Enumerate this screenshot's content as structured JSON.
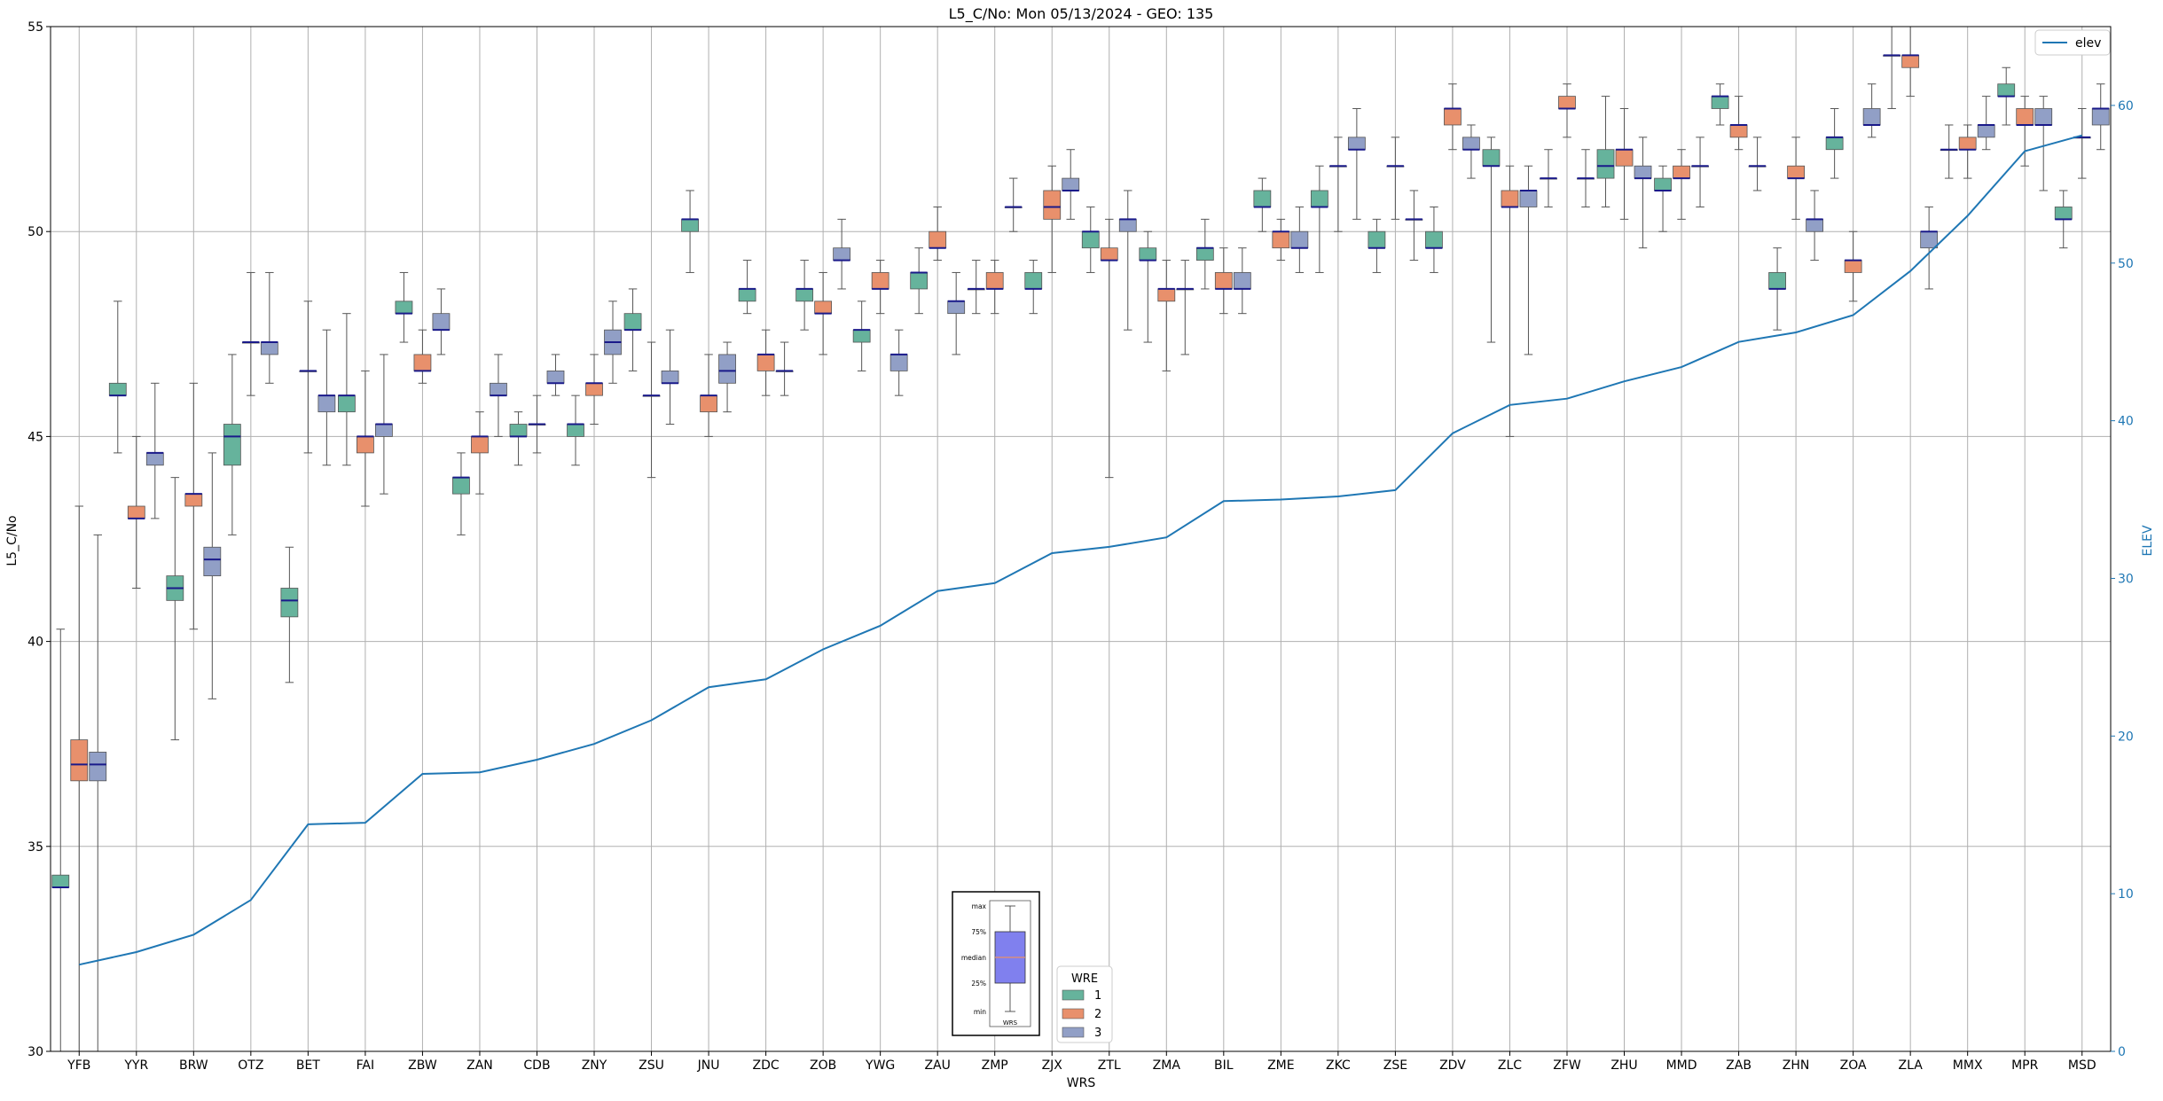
{
  "chart_data": {
    "type": "box",
    "title": "L5_C/No: Mon 05/13/2024 - GEO: 135",
    "xlabel": "WRS",
    "ylabel": "L5_C/No",
    "y2label": "ELEV",
    "ylim": [
      30,
      55
    ],
    "y2lim": [
      0,
      65
    ],
    "yticks": [
      30,
      35,
      40,
      45,
      50,
      55
    ],
    "y2ticks": [
      0,
      10,
      20,
      30,
      40,
      50,
      60
    ],
    "grid": true,
    "categories": [
      "YFB",
      "YYR",
      "BRW",
      "OTZ",
      "BET",
      "FAI",
      "ZBW",
      "ZAN",
      "CDB",
      "ZNY",
      "ZSU",
      "JNU",
      "ZDC",
      "ZOB",
      "YWG",
      "ZAU",
      "ZMP",
      "ZJX",
      "ZTL",
      "ZMA",
      "BIL",
      "ZME",
      "ZKC",
      "ZSE",
      "ZDV",
      "ZLC",
      "ZFW",
      "ZHU",
      "MMD",
      "ZAB",
      "ZHN",
      "ZOA",
      "ZLA",
      "MMX",
      "MPR",
      "MSD"
    ],
    "wre_colors": {
      "1": "#66b39c",
      "2": "#e8906c",
      "3": "#919fc6"
    },
    "median_color": "#1a1a8a",
    "boxes": [
      {
        "wrs": "YFB",
        "wre": 1,
        "min": 30,
        "q1": 34.0,
        "median": 34.0,
        "q3": 34.3,
        "max": 40.3
      },
      {
        "wrs": "YFB",
        "wre": 2,
        "min": 30,
        "q1": 36.6,
        "median": 37.0,
        "q3": 37.6,
        "max": 43.3
      },
      {
        "wrs": "YFB",
        "wre": 3,
        "min": 30,
        "q1": 36.6,
        "median": 37.0,
        "q3": 37.3,
        "max": 42.6
      },
      {
        "wrs": "YYR",
        "wre": 1,
        "min": 44.6,
        "q1": 46.0,
        "median": 46.0,
        "q3": 46.3,
        "max": 48.3
      },
      {
        "wrs": "YYR",
        "wre": 2,
        "min": 41.3,
        "q1": 43.0,
        "median": 43.0,
        "q3": 43.3,
        "max": 45.0
      },
      {
        "wrs": "YYR",
        "wre": 3,
        "min": 43.0,
        "q1": 44.3,
        "median": 44.6,
        "q3": 44.6,
        "max": 46.3
      },
      {
        "wrs": "BRW",
        "wre": 1,
        "min": 37.6,
        "q1": 41.0,
        "median": 41.3,
        "q3": 41.6,
        "max": 44.0
      },
      {
        "wrs": "BRW",
        "wre": 2,
        "min": 40.3,
        "q1": 43.3,
        "median": 43.6,
        "q3": 43.6,
        "max": 46.3
      },
      {
        "wrs": "BRW",
        "wre": 3,
        "min": 38.6,
        "q1": 41.6,
        "median": 42.0,
        "q3": 42.3,
        "max": 44.6
      },
      {
        "wrs": "OTZ",
        "wre": 1,
        "min": 42.6,
        "q1": 44.3,
        "median": 45.0,
        "q3": 45.3,
        "max": 47.0
      },
      {
        "wrs": "OTZ",
        "wre": 2,
        "min": 46.0,
        "q1": 47.3,
        "median": 47.3,
        "q3": 47.3,
        "max": 49.0
      },
      {
        "wrs": "OTZ",
        "wre": 3,
        "min": 46.3,
        "q1": 47.0,
        "median": 47.3,
        "q3": 47.3,
        "max": 49.0
      },
      {
        "wrs": "BET",
        "wre": 1,
        "min": 39.0,
        "q1": 40.6,
        "median": 41.0,
        "q3": 41.3,
        "max": 42.3
      },
      {
        "wrs": "BET",
        "wre": 2,
        "min": 44.6,
        "q1": 46.6,
        "median": 46.6,
        "q3": 46.6,
        "max": 48.3
      },
      {
        "wrs": "BET",
        "wre": 3,
        "min": 44.3,
        "q1": 45.6,
        "median": 46.0,
        "q3": 46.0,
        "max": 47.6
      },
      {
        "wrs": "FAI",
        "wre": 1,
        "min": 44.3,
        "q1": 45.6,
        "median": 46.0,
        "q3": 46.0,
        "max": 48.0
      },
      {
        "wrs": "FAI",
        "wre": 2,
        "min": 43.3,
        "q1": 44.6,
        "median": 45.0,
        "q3": 45.0,
        "max": 46.6
      },
      {
        "wrs": "FAI",
        "wre": 3,
        "min": 43.6,
        "q1": 45.0,
        "median": 45.3,
        "q3": 45.3,
        "max": 47.0
      },
      {
        "wrs": "ZBW",
        "wre": 1,
        "min": 47.3,
        "q1": 48.0,
        "median": 48.0,
        "q3": 48.3,
        "max": 49.0
      },
      {
        "wrs": "ZBW",
        "wre": 2,
        "min": 46.3,
        "q1": 46.6,
        "median": 46.6,
        "q3": 47.0,
        "max": 47.6
      },
      {
        "wrs": "ZBW",
        "wre": 3,
        "min": 47.0,
        "q1": 47.6,
        "median": 47.6,
        "q3": 48.0,
        "max": 48.6
      },
      {
        "wrs": "ZAN",
        "wre": 1,
        "min": 42.6,
        "q1": 43.6,
        "median": 44.0,
        "q3": 44.0,
        "max": 44.6
      },
      {
        "wrs": "ZAN",
        "wre": 2,
        "min": 43.6,
        "q1": 44.6,
        "median": 45.0,
        "q3": 45.0,
        "max": 45.6
      },
      {
        "wrs": "ZAN",
        "wre": 3,
        "min": 45.0,
        "q1": 46.0,
        "median": 46.0,
        "q3": 46.3,
        "max": 47.0
      },
      {
        "wrs": "CDB",
        "wre": 1,
        "min": 44.3,
        "q1": 45.0,
        "median": 45.0,
        "q3": 45.3,
        "max": 45.6
      },
      {
        "wrs": "CDB",
        "wre": 2,
        "min": 44.6,
        "q1": 45.3,
        "median": 45.3,
        "q3": 45.3,
        "max": 46.0
      },
      {
        "wrs": "CDB",
        "wre": 3,
        "min": 46.0,
        "q1": 46.3,
        "median": 46.3,
        "q3": 46.6,
        "max": 47.0
      },
      {
        "wrs": "ZNY",
        "wre": 1,
        "min": 44.3,
        "q1": 45.0,
        "median": 45.3,
        "q3": 45.3,
        "max": 46.0
      },
      {
        "wrs": "ZNY",
        "wre": 2,
        "min": 45.3,
        "q1": 46.0,
        "median": 46.3,
        "q3": 46.3,
        "max": 47.0
      },
      {
        "wrs": "ZNY",
        "wre": 3,
        "min": 46.3,
        "q1": 47.0,
        "median": 47.3,
        "q3": 47.6,
        "max": 48.3
      },
      {
        "wrs": "ZSU",
        "wre": 1,
        "min": 46.6,
        "q1": 47.6,
        "median": 47.6,
        "q3": 48.0,
        "max": 48.6
      },
      {
        "wrs": "ZSU",
        "wre": 2,
        "min": 44.0,
        "q1": 46.0,
        "median": 46.0,
        "q3": 46.0,
        "max": 47.3
      },
      {
        "wrs": "ZSU",
        "wre": 3,
        "min": 45.3,
        "q1": 46.3,
        "median": 46.3,
        "q3": 46.6,
        "max": 47.6
      },
      {
        "wrs": "JNU",
        "wre": 1,
        "min": 49.0,
        "q1": 50.0,
        "median": 50.3,
        "q3": 50.3,
        "max": 51.0
      },
      {
        "wrs": "JNU",
        "wre": 2,
        "min": 45.0,
        "q1": 45.6,
        "median": 46.0,
        "q3": 46.0,
        "max": 47.0
      },
      {
        "wrs": "JNU",
        "wre": 3,
        "min": 45.6,
        "q1": 46.3,
        "median": 46.6,
        "q3": 47.0,
        "max": 47.3
      },
      {
        "wrs": "ZDC",
        "wre": 1,
        "min": 48.0,
        "q1": 48.3,
        "median": 48.6,
        "q3": 48.6,
        "max": 49.3
      },
      {
        "wrs": "ZDC",
        "wre": 2,
        "min": 46.0,
        "q1": 46.6,
        "median": 47.0,
        "q3": 47.0,
        "max": 47.6
      },
      {
        "wrs": "ZDC",
        "wre": 3,
        "min": 46.0,
        "q1": 46.6,
        "median": 46.6,
        "q3": 46.6,
        "max": 47.3
      },
      {
        "wrs": "ZOB",
        "wre": 1,
        "min": 47.6,
        "q1": 48.3,
        "median": 48.6,
        "q3": 48.6,
        "max": 49.3
      },
      {
        "wrs": "ZOB",
        "wre": 2,
        "min": 47.0,
        "q1": 48.0,
        "median": 48.0,
        "q3": 48.3,
        "max": 49.0
      },
      {
        "wrs": "ZOB",
        "wre": 3,
        "min": 48.6,
        "q1": 49.3,
        "median": 49.3,
        "q3": 49.6,
        "max": 50.3
      },
      {
        "wrs": "YWG",
        "wre": 1,
        "min": 46.6,
        "q1": 47.3,
        "median": 47.6,
        "q3": 47.6,
        "max": 48.3
      },
      {
        "wrs": "YWG",
        "wre": 2,
        "min": 48.0,
        "q1": 48.6,
        "median": 48.6,
        "q3": 49.0,
        "max": 49.3
      },
      {
        "wrs": "YWG",
        "wre": 3,
        "min": 46.0,
        "q1": 46.6,
        "median": 47.0,
        "q3": 47.0,
        "max": 47.6
      },
      {
        "wrs": "ZAU",
        "wre": 1,
        "min": 48.0,
        "q1": 48.6,
        "median": 49.0,
        "q3": 49.0,
        "max": 49.6
      },
      {
        "wrs": "ZAU",
        "wre": 2,
        "min": 49.3,
        "q1": 49.6,
        "median": 49.6,
        "q3": 50.0,
        "max": 50.6
      },
      {
        "wrs": "ZAU",
        "wre": 3,
        "min": 47.0,
        "q1": 48.0,
        "median": 48.3,
        "q3": 48.3,
        "max": 49.0
      },
      {
        "wrs": "ZMP",
        "wre": 1,
        "min": 48.0,
        "q1": 48.6,
        "median": 48.6,
        "q3": 48.6,
        "max": 49.3
      },
      {
        "wrs": "ZMP",
        "wre": 2,
        "min": 48.0,
        "q1": 48.6,
        "median": 48.6,
        "q3": 49.0,
        "max": 49.3
      },
      {
        "wrs": "ZMP",
        "wre": 3,
        "min": 50.0,
        "q1": 50.6,
        "median": 50.6,
        "q3": 50.6,
        "max": 51.3
      },
      {
        "wrs": "ZJX",
        "wre": 1,
        "min": 48.0,
        "q1": 48.6,
        "median": 48.6,
        "q3": 49.0,
        "max": 49.3
      },
      {
        "wrs": "ZJX",
        "wre": 2,
        "min": 49.0,
        "q1": 50.3,
        "median": 50.6,
        "q3": 51.0,
        "max": 51.6
      },
      {
        "wrs": "ZJX",
        "wre": 3,
        "min": 50.3,
        "q1": 51.0,
        "median": 51.0,
        "q3": 51.3,
        "max": 52.0
      },
      {
        "wrs": "ZTL",
        "wre": 1,
        "min": 49.0,
        "q1": 49.6,
        "median": 50.0,
        "q3": 50.0,
        "max": 50.6
      },
      {
        "wrs": "ZTL",
        "wre": 2,
        "min": 44.0,
        "q1": 49.3,
        "median": 49.3,
        "q3": 49.6,
        "max": 50.3
      },
      {
        "wrs": "ZTL",
        "wre": 3,
        "min": 47.6,
        "q1": 50.0,
        "median": 50.3,
        "q3": 50.3,
        "max": 51.0
      },
      {
        "wrs": "ZMA",
        "wre": 1,
        "min": 47.3,
        "q1": 49.3,
        "median": 49.3,
        "q3": 49.6,
        "max": 50.0
      },
      {
        "wrs": "ZMA",
        "wre": 2,
        "min": 46.6,
        "q1": 48.3,
        "median": 48.6,
        "q3": 48.6,
        "max": 49.3
      },
      {
        "wrs": "ZMA",
        "wre": 3,
        "min": 47.0,
        "q1": 48.6,
        "median": 48.6,
        "q3": 48.6,
        "max": 49.3
      },
      {
        "wrs": "BIL",
        "wre": 1,
        "min": 48.6,
        "q1": 49.3,
        "median": 49.6,
        "q3": 49.6,
        "max": 50.3
      },
      {
        "wrs": "BIL",
        "wre": 2,
        "min": 48.0,
        "q1": 48.6,
        "median": 48.6,
        "q3": 49.0,
        "max": 49.6
      },
      {
        "wrs": "BIL",
        "wre": 3,
        "min": 48.0,
        "q1": 48.6,
        "median": 48.6,
        "q3": 49.0,
        "max": 49.6
      },
      {
        "wrs": "ZME",
        "wre": 1,
        "min": 50.0,
        "q1": 50.6,
        "median": 50.6,
        "q3": 51.0,
        "max": 51.3
      },
      {
        "wrs": "ZME",
        "wre": 2,
        "min": 49.3,
        "q1": 49.6,
        "median": 50.0,
        "q3": 50.0,
        "max": 50.3
      },
      {
        "wrs": "ZME",
        "wre": 3,
        "min": 49.0,
        "q1": 49.6,
        "median": 49.6,
        "q3": 50.0,
        "max": 50.6
      },
      {
        "wrs": "ZKC",
        "wre": 1,
        "min": 49.0,
        "q1": 50.6,
        "median": 50.6,
        "q3": 51.0,
        "max": 51.6
      },
      {
        "wrs": "ZKC",
        "wre": 2,
        "min": 50.0,
        "q1": 51.6,
        "median": 51.6,
        "q3": 51.6,
        "max": 52.3
      },
      {
        "wrs": "ZKC",
        "wre": 3,
        "min": 50.3,
        "q1": 52.0,
        "median": 52.0,
        "q3": 52.3,
        "max": 53.0
      },
      {
        "wrs": "ZSE",
        "wre": 1,
        "min": 49.0,
        "q1": 49.6,
        "median": 49.6,
        "q3": 50.0,
        "max": 50.3
      },
      {
        "wrs": "ZSE",
        "wre": 2,
        "min": 50.3,
        "q1": 51.6,
        "median": 51.6,
        "q3": 51.6,
        "max": 52.3
      },
      {
        "wrs": "ZSE",
        "wre": 3,
        "min": 49.3,
        "q1": 50.3,
        "median": 50.3,
        "q3": 50.3,
        "max": 51.0
      },
      {
        "wrs": "ZDV",
        "wre": 1,
        "min": 49.0,
        "q1": 49.6,
        "median": 49.6,
        "q3": 50.0,
        "max": 50.6
      },
      {
        "wrs": "ZDV",
        "wre": 2,
        "min": 52.0,
        "q1": 52.6,
        "median": 53.0,
        "q3": 53.0,
        "max": 53.6
      },
      {
        "wrs": "ZDV",
        "wre": 3,
        "min": 51.3,
        "q1": 52.0,
        "median": 52.0,
        "q3": 52.3,
        "max": 52.6
      },
      {
        "wrs": "ZLC",
        "wre": 1,
        "min": 47.3,
        "q1": 51.6,
        "median": 51.6,
        "q3": 52.0,
        "max": 52.3
      },
      {
        "wrs": "ZLC",
        "wre": 2,
        "min": 45.0,
        "q1": 50.6,
        "median": 50.6,
        "q3": 51.0,
        "max": 51.6
      },
      {
        "wrs": "ZLC",
        "wre": 3,
        "min": 47.0,
        "q1": 50.6,
        "median": 51.0,
        "q3": 51.0,
        "max": 51.6
      },
      {
        "wrs": "ZFW",
        "wre": 1,
        "min": 50.6,
        "q1": 51.3,
        "median": 51.3,
        "q3": 51.3,
        "max": 52.0
      },
      {
        "wrs": "ZFW",
        "wre": 2,
        "min": 52.3,
        "q1": 53.0,
        "median": 53.0,
        "q3": 53.3,
        "max": 53.6
      },
      {
        "wrs": "ZFW",
        "wre": 3,
        "min": 50.6,
        "q1": 51.3,
        "median": 51.3,
        "q3": 51.3,
        "max": 52.0
      },
      {
        "wrs": "ZHU",
        "wre": 1,
        "min": 50.6,
        "q1": 51.3,
        "median": 51.6,
        "q3": 52.0,
        "max": 53.3
      },
      {
        "wrs": "ZHU",
        "wre": 2,
        "min": 50.3,
        "q1": 51.6,
        "median": 52.0,
        "q3": 52.0,
        "max": 53.0
      },
      {
        "wrs": "ZHU",
        "wre": 3,
        "min": 49.6,
        "q1": 51.3,
        "median": 51.3,
        "q3": 51.6,
        "max": 52.3
      },
      {
        "wrs": "MMD",
        "wre": 1,
        "min": 50.0,
        "q1": 51.0,
        "median": 51.0,
        "q3": 51.3,
        "max": 51.6
      },
      {
        "wrs": "MMD",
        "wre": 2,
        "min": 50.3,
        "q1": 51.3,
        "median": 51.3,
        "q3": 51.6,
        "max": 52.0
      },
      {
        "wrs": "MMD",
        "wre": 3,
        "min": 50.6,
        "q1": 51.6,
        "median": 51.6,
        "q3": 51.6,
        "max": 52.3
      },
      {
        "wrs": "ZAB",
        "wre": 1,
        "min": 52.6,
        "q1": 53.0,
        "median": 53.3,
        "q3": 53.3,
        "max": 53.6
      },
      {
        "wrs": "ZAB",
        "wre": 2,
        "min": 52.0,
        "q1": 52.3,
        "median": 52.6,
        "q3": 52.6,
        "max": 53.3
      },
      {
        "wrs": "ZAB",
        "wre": 3,
        "min": 51.0,
        "q1": 51.6,
        "median": 51.6,
        "q3": 51.6,
        "max": 52.3
      },
      {
        "wrs": "ZHN",
        "wre": 1,
        "min": 47.6,
        "q1": 48.6,
        "median": 48.6,
        "q3": 49.0,
        "max": 49.6
      },
      {
        "wrs": "ZHN",
        "wre": 2,
        "min": 50.3,
        "q1": 51.3,
        "median": 51.3,
        "q3": 51.6,
        "max": 52.3
      },
      {
        "wrs": "ZHN",
        "wre": 3,
        "min": 49.3,
        "q1": 50.0,
        "median": 50.3,
        "q3": 50.3,
        "max": 51.0
      },
      {
        "wrs": "ZOA",
        "wre": 1,
        "min": 51.3,
        "q1": 52.0,
        "median": 52.3,
        "q3": 52.3,
        "max": 53.0
      },
      {
        "wrs": "ZOA",
        "wre": 2,
        "min": 48.3,
        "q1": 49.0,
        "median": 49.3,
        "q3": 49.3,
        "max": 50.0
      },
      {
        "wrs": "ZOA",
        "wre": 3,
        "min": 52.3,
        "q1": 52.6,
        "median": 52.6,
        "q3": 53.0,
        "max": 53.6
      },
      {
        "wrs": "ZLA",
        "wre": 1,
        "min": 53.0,
        "q1": 54.3,
        "median": 54.3,
        "q3": 54.3,
        "max": 55.0
      },
      {
        "wrs": "ZLA",
        "wre": 2,
        "min": 53.3,
        "q1": 54.0,
        "median": 54.3,
        "q3": 54.3,
        "max": 55.0
      },
      {
        "wrs": "ZLA",
        "wre": 3,
        "min": 48.6,
        "q1": 49.6,
        "median": 50.0,
        "q3": 50.0,
        "max": 50.6
      },
      {
        "wrs": "MMX",
        "wre": 1,
        "min": 51.3,
        "q1": 52.0,
        "median": 52.0,
        "q3": 52.0,
        "max": 52.6
      },
      {
        "wrs": "MMX",
        "wre": 2,
        "min": 51.3,
        "q1": 52.0,
        "median": 52.0,
        "q3": 52.3,
        "max": 52.6
      },
      {
        "wrs": "MMX",
        "wre": 3,
        "min": 52.0,
        "q1": 52.3,
        "median": 52.6,
        "q3": 52.6,
        "max": 53.3
      },
      {
        "wrs": "MPR",
        "wre": 1,
        "min": 52.6,
        "q1": 53.3,
        "median": 53.3,
        "q3": 53.6,
        "max": 54.0
      },
      {
        "wrs": "MPR",
        "wre": 2,
        "min": 51.6,
        "q1": 52.6,
        "median": 52.6,
        "q3": 53.0,
        "max": 53.3
      },
      {
        "wrs": "MPR",
        "wre": 3,
        "min": 51.0,
        "q1": 52.6,
        "median": 52.6,
        "q3": 53.0,
        "max": 53.3
      },
      {
        "wrs": "MSD",
        "wre": 1,
        "min": 49.6,
        "q1": 50.3,
        "median": 50.3,
        "q3": 50.6,
        "max": 51.0
      },
      {
        "wrs": "MSD",
        "wre": 2,
        "min": 51.3,
        "q1": 52.3,
        "median": 52.3,
        "q3": 52.3,
        "max": 53.0
      },
      {
        "wrs": "MSD",
        "wre": 3,
        "min": 52.0,
        "q1": 52.6,
        "median": 53.0,
        "q3": 53.0,
        "max": 53.6
      }
    ],
    "elev_series": {
      "name": "elev",
      "color": "#1f77b4",
      "values": [
        5.5,
        6.3,
        7.4,
        9.6,
        14.4,
        14.5,
        17.6,
        17.7,
        18.5,
        19.5,
        21.0,
        23.1,
        23.6,
        25.5,
        27.0,
        29.2,
        29.7,
        31.6,
        32.0,
        32.6,
        34.9,
        35.0,
        35.2,
        35.6,
        39.2,
        41.0,
        41.4,
        42.5,
        43.4,
        45.0,
        45.6,
        46.7,
        49.5,
        53.0,
        57.1,
        58.1
      ]
    },
    "legend_top_right": "elev",
    "legend_wre": {
      "title": "WRE",
      "items": [
        {
          "label": "1",
          "color": "#66b39c"
        },
        {
          "label": "2",
          "color": "#e8906c"
        },
        {
          "label": "3",
          "color": "#919fc6"
        }
      ]
    },
    "box_key": {
      "labels": [
        "max",
        "75%",
        "median",
        "25%",
        "min"
      ],
      "caption": "WRS"
    }
  }
}
